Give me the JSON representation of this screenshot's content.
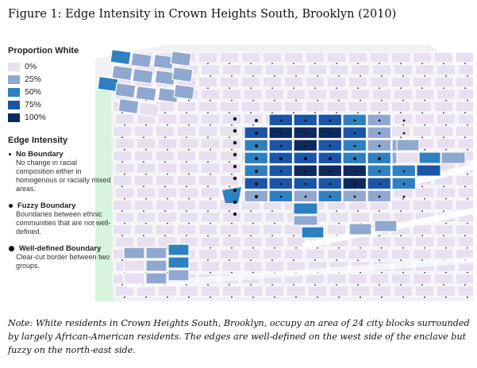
{
  "figure": {
    "title": "Figure 1: Edge Intensity in Crown Heights South, Brooklyn (2010)",
    "note": "Note: White residents in Crown Heights South, Brooklyn, occupy an area of 24 city blocks surrounded by largely African-American residents. The edges are well-defined on the west side of the enclave but fuzzy on the north-east side."
  },
  "legend": {
    "proportion_title": "Proportion White",
    "proportion_items": [
      {
        "label": "0%",
        "color": "#e8e0f0"
      },
      {
        "label": "25%",
        "color": "#90a8d0"
      },
      {
        "label": "50%",
        "color": "#2f80c0"
      },
      {
        "label": "75%",
        "color": "#1a55a8"
      },
      {
        "label": "100%",
        "color": "#0c2a5e"
      }
    ],
    "edge_title": "Edge Intensity",
    "edge_items": [
      {
        "label": "No Boundary",
        "desc": "No change in racial composition either in homogenous or racially mixed areas."
      },
      {
        "label": "Fuzzy Boundary",
        "desc": "Boundaries between ethnic communities that are not well-defined."
      },
      {
        "label": "Well-defined Boundary",
        "desc": "Clear-cut border between two groups."
      }
    ]
  },
  "map": {
    "background": "#f1f1f3",
    "park_color": "#d6f5dc",
    "block_base_color": "#e8e0f0",
    "enclave_block_count": 24
  }
}
